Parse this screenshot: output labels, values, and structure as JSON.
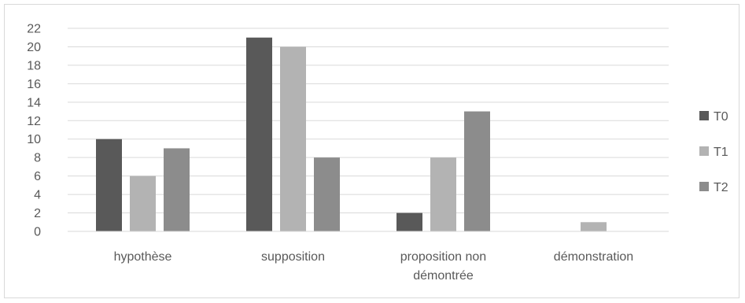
{
  "chart_data": {
    "type": "bar",
    "title": "",
    "xlabel": "",
    "ylabel": "",
    "categories": [
      [
        "hypothèse"
      ],
      [
        "supposition"
      ],
      [
        "proposition non",
        "démontrée"
      ],
      [
        "démonstration"
      ]
    ],
    "series": [
      {
        "name": "T0",
        "values": [
          10,
          21,
          2,
          0
        ],
        "color": "#595959"
      },
      {
        "name": "T1",
        "values": [
          6,
          20,
          8,
          1
        ],
        "color": "#b3b3b3"
      },
      {
        "name": "T2",
        "values": [
          9,
          8,
          13,
          0
        ],
        "color": "#8c8c8c"
      }
    ],
    "ylim": [
      0,
      22
    ],
    "yticks": [
      0,
      2,
      4,
      6,
      8,
      10,
      12,
      14,
      16,
      18,
      20,
      22
    ],
    "grid": true,
    "legend": "right"
  }
}
